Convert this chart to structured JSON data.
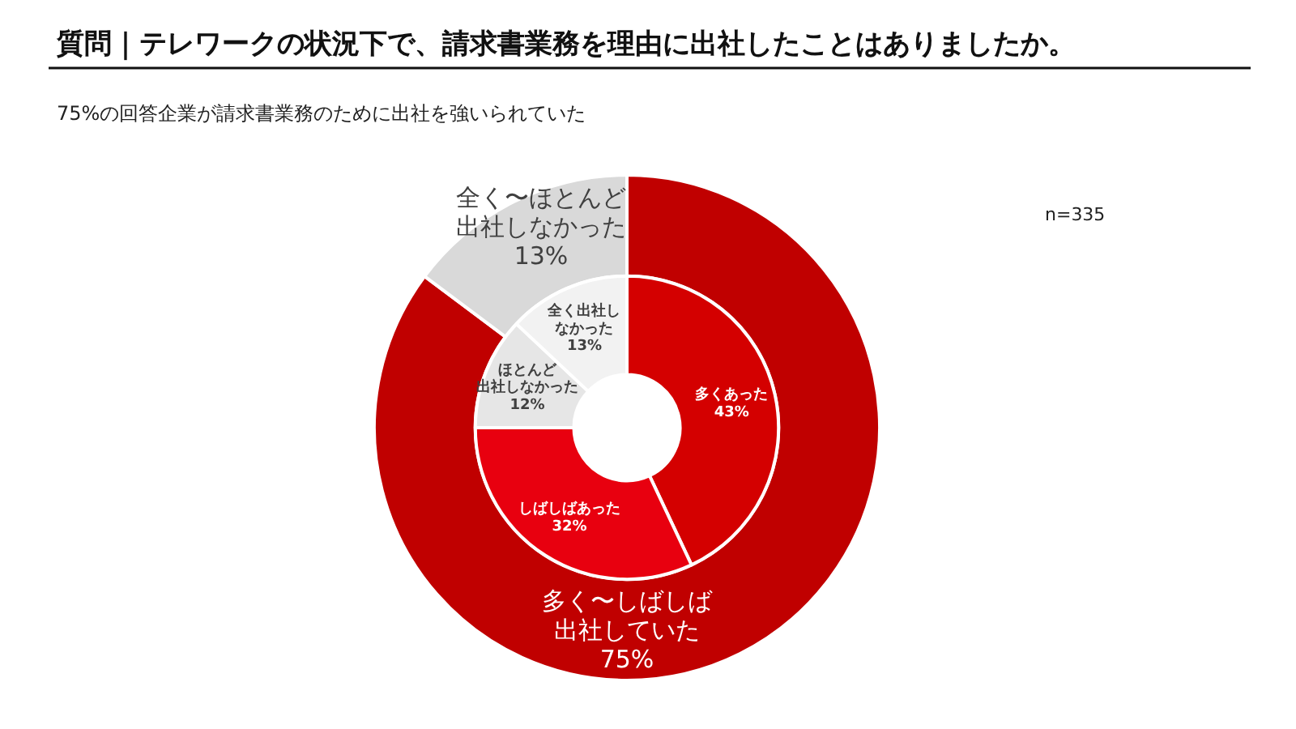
{
  "chart_data": [
    {
      "type": "donut",
      "title": "質問｜テレワークの状況下で、請求書業務を理由に出社したことはありましたか。",
      "subtitle": "75%の回答企業が請求書業務のために出社を強いられていた",
      "annotations": [
        "n=335"
      ],
      "categories": [
        "多く〜しばしば出社していた",
        "全く〜ほとんど出社しなかった"
      ],
      "values": [
        75,
        13
      ],
      "value_labels": [
        "75%",
        "13%"
      ],
      "colors": [
        "#c00000",
        "#d9d9d9"
      ]
    },
    {
      "type": "donut",
      "categories": [
        "多くあった",
        "しばしばあった",
        "ほとんど出社しなかった",
        "全く出社しなかった"
      ],
      "values": [
        43,
        32,
        12,
        13
      ],
      "value_labels": [
        "43%",
        "32%",
        "12%",
        "13%"
      ],
      "colors": [
        "#d40000",
        "#e8000f",
        "#e6e6e6",
        "#f2f2f2"
      ]
    }
  ]
}
